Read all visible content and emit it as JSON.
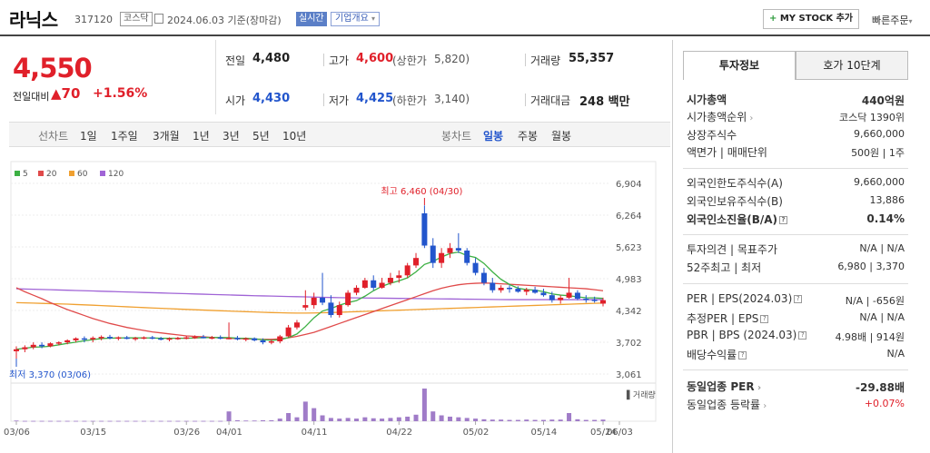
{
  "header": {
    "name": "라닉스",
    "code": "317120",
    "market": "코스닥",
    "date": "2024.06.03 기준(장마감)",
    "realtime": "실시간",
    "corp_info": "기업개요",
    "mystock": "MY STOCK 추가",
    "quick_order": "빠른주문"
  },
  "price": {
    "current": "4,550",
    "change_label": "전일대비",
    "change": "70",
    "change_pct": "+1.56%"
  },
  "quote": {
    "prev_label": "전일",
    "prev": "4,480",
    "high_label": "고가",
    "high": "4,600",
    "upper_label": "(상한가",
    "upper": "5,820)",
    "vol_label": "거래량",
    "vol": "55,357",
    "open_label": "시가",
    "open": "4,430",
    "low_label": "저가",
    "low": "4,425",
    "lower_label": "(하한가",
    "lower": "3,140)",
    "amt_label": "거래대금",
    "amt": "248 백만"
  },
  "periods": {
    "line_label": "선차트",
    "line_items": [
      "1일",
      "1주일",
      "3개월",
      "1년",
      "3년",
      "5년",
      "10년"
    ],
    "candle_label": "봉차트",
    "candle_items": [
      "일봉",
      "주봉",
      "월봉"
    ]
  },
  "colors": {
    "up": "#e0202a",
    "down": "#2255cc",
    "ma5": "#3cb043",
    "ma20": "#e04a4a",
    "ma60": "#f0a030",
    "ma120": "#a064d6",
    "volume": "#a07cc8"
  },
  "chart_data": {
    "type": "candlestick",
    "legend": [
      "5",
      "20",
      "60",
      "120"
    ],
    "y_ticks": [
      "6,904",
      "6,264",
      "5,623",
      "4,983",
      "4,342",
      "3,702",
      "3,061"
    ],
    "ylim": [
      3061,
      6904
    ],
    "x_ticks": [
      "03/06",
      "03/15",
      "03/26",
      "04/01",
      "04/11",
      "04/22",
      "05/02",
      "05/14",
      "05/24",
      "06/03"
    ],
    "max_label": "최고 6,460 (04/30)",
    "min_label": "최저 3,370 (03/06)",
    "volume_label": "거래량",
    "candles": [
      [
        3520,
        3620,
        3370,
        3560
      ],
      [
        3560,
        3640,
        3500,
        3600
      ],
      [
        3600,
        3700,
        3560,
        3650
      ],
      [
        3650,
        3700,
        3580,
        3620
      ],
      [
        3620,
        3700,
        3600,
        3680
      ],
      [
        3680,
        3720,
        3640,
        3700
      ],
      [
        3700,
        3760,
        3660,
        3740
      ],
      [
        3740,
        3800,
        3700,
        3780
      ],
      [
        3780,
        3820,
        3700,
        3760
      ],
      [
        3760,
        3820,
        3700,
        3790
      ],
      [
        3790,
        3840,
        3740,
        3810
      ],
      [
        3810,
        3850,
        3760,
        3780
      ],
      [
        3780,
        3820,
        3740,
        3800
      ],
      [
        3800,
        3830,
        3760,
        3770
      ],
      [
        3770,
        3810,
        3730,
        3790
      ],
      [
        3790,
        3820,
        3760,
        3800
      ],
      [
        3800,
        3830,
        3760,
        3780
      ],
      [
        3780,
        3810,
        3740,
        3760
      ],
      [
        3760,
        3800,
        3720,
        3780
      ],
      [
        3780,
        3810,
        3750,
        3790
      ],
      [
        3790,
        3830,
        3760,
        3800
      ],
      [
        3800,
        3840,
        3770,
        3810
      ],
      [
        3810,
        3850,
        3780,
        3790
      ],
      [
        3790,
        3830,
        3760,
        3800
      ],
      [
        3800,
        3840,
        3760,
        3780
      ],
      [
        3780,
        4100,
        3760,
        3790
      ],
      [
        3790,
        3830,
        3740,
        3760
      ],
      [
        3760,
        3800,
        3720,
        3780
      ],
      [
        3780,
        3800,
        3720,
        3740
      ],
      [
        3740,
        3780,
        3660,
        3700
      ],
      [
        3700,
        3760,
        3660,
        3720
      ],
      [
        3720,
        3850,
        3680,
        3820
      ],
      [
        3820,
        4050,
        3800,
        4000
      ],
      [
        4000,
        4150,
        3960,
        4100
      ],
      [
        4400,
        4750,
        4350,
        4450
      ],
      [
        4450,
        4700,
        4380,
        4600
      ],
      [
        4600,
        5100,
        4450,
        4500
      ],
      [
        4500,
        4650,
        4200,
        4250
      ],
      [
        4250,
        4520,
        4200,
        4450
      ],
      [
        4450,
        4750,
        4420,
        4700
      ],
      [
        4700,
        4850,
        4650,
        4800
      ],
      [
        4800,
        5000,
        4780,
        4950
      ],
      [
        4950,
        5050,
        4750,
        4800
      ],
      [
        4800,
        5000,
        4780,
        4900
      ],
      [
        4900,
        5100,
        4850,
        5000
      ],
      [
        5000,
        5150,
        4900,
        5050
      ],
      [
        5050,
        5300,
        5000,
        5250
      ],
      [
        5250,
        5500,
        5200,
        5400
      ],
      [
        6300,
        6460,
        5600,
        5650
      ],
      [
        5650,
        5800,
        5200,
        5300
      ],
      [
        5300,
        5600,
        5200,
        5500
      ],
      [
        5500,
        5700,
        5400,
        5600
      ],
      [
        5600,
        5900,
        5500,
        5550
      ],
      [
        5550,
        5600,
        5250,
        5300
      ],
      [
        5300,
        5400,
        5050,
        5100
      ],
      [
        5100,
        5200,
        4850,
        4900
      ],
      [
        4900,
        5000,
        4700,
        4750
      ],
      [
        4750,
        4850,
        4700,
        4800
      ],
      [
        4800,
        4850,
        4700,
        4780
      ],
      [
        4780,
        4830,
        4700,
        4720
      ],
      [
        4720,
        4800,
        4650,
        4760
      ],
      [
        4760,
        4820,
        4680,
        4700
      ],
      [
        4700,
        4780,
        4620,
        4650
      ],
      [
        4650,
        4720,
        4500,
        4550
      ],
      [
        4550,
        4650,
        4480,
        4600
      ],
      [
        4600,
        5000,
        4580,
        4700
      ],
      [
        4700,
        4750,
        4550,
        4580
      ],
      [
        4580,
        4650,
        4500,
        4560
      ],
      [
        4560,
        4620,
        4500,
        4540
      ],
      [
        4480,
        4600,
        4425,
        4550
      ]
    ],
    "ma20": [
      4800,
      4720,
      4650,
      4580,
      4500,
      4430,
      4360,
      4300,
      4240,
      4180,
      4130,
      4080,
      4040,
      4000,
      3970,
      3940,
      3910,
      3890,
      3870,
      3850,
      3830,
      3820,
      3810,
      3800,
      3790,
      3780,
      3775,
      3770,
      3765,
      3760,
      3760,
      3770,
      3790,
      3820,
      3860,
      3900,
      3960,
      4020,
      4080,
      4140,
      4200,
      4260,
      4320,
      4380,
      4440,
      4500,
      4560,
      4620,
      4680,
      4740,
      4790,
      4830,
      4860,
      4880,
      4890,
      4895,
      4890,
      4880,
      4870,
      4860,
      4850,
      4840,
      4830,
      4820,
      4810,
      4800,
      4790,
      4780,
      4760,
      4740
    ],
    "ma60": [
      4500,
      4495,
      4490,
      4485,
      4480,
      4475,
      4470,
      4462,
      4455,
      4448,
      4440,
      4432,
      4424,
      4416,
      4408,
      4400,
      4392,
      4385,
      4378,
      4371,
      4364,
      4357,
      4350,
      4343,
      4336,
      4330,
      4324,
      4318,
      4312,
      4306,
      4300,
      4296,
      4292,
      4290,
      4290,
      4292,
      4296,
      4300,
      4306,
      4312,
      4318,
      4324,
      4330,
      4336,
      4342,
      4348,
      4354,
      4360,
      4366,
      4372,
      4378,
      4384,
      4390,
      4396,
      4402,
      4408,
      4414,
      4420,
      4426,
      4432,
      4438,
      4444,
      4450,
      4456,
      4462,
      4468,
      4474,
      4480,
      4486,
      4492
    ],
    "ma120": [
      4780,
      4775,
      4770,
      4765,
      4760,
      4755,
      4750,
      4745,
      4740,
      4735,
      4730,
      4725,
      4720,
      4715,
      4710,
      4705,
      4700,
      4695,
      4690,
      4685,
      4680,
      4675,
      4670,
      4665,
      4660,
      4655,
      4650,
      4645,
      4640,
      4636,
      4632,
      4628,
      4624,
      4620,
      4616,
      4612,
      4608,
      4604,
      4600,
      4598,
      4596,
      4594,
      4592,
      4590,
      4588,
      4586,
      4584,
      4582,
      4580,
      4578,
      4576,
      4574,
      4572,
      4570,
      4568,
      4566,
      4564,
      4562,
      4560,
      4560,
      4560,
      4560,
      4560,
      4560,
      4560,
      4560,
      4560,
      4560,
      4560,
      4560
    ],
    "volume": [
      2,
      1,
      1,
      1,
      1,
      1,
      1,
      1,
      1,
      1,
      1,
      1,
      1,
      1,
      1,
      1,
      1,
      1,
      1,
      1,
      1,
      1,
      1,
      1,
      1,
      30,
      3,
      2,
      2,
      3,
      3,
      8,
      25,
      12,
      60,
      40,
      18,
      10,
      8,
      10,
      8,
      12,
      9,
      8,
      10,
      12,
      14,
      20,
      100,
      30,
      18,
      14,
      12,
      10,
      8,
      6,
      5,
      5,
      4,
      4,
      5,
      4,
      4,
      5,
      5,
      25,
      6,
      4,
      4,
      5
    ]
  },
  "invest_tabs": [
    "투자정보",
    "호가 10단계"
  ],
  "info": [
    {
      "label": "시가총액",
      "value": "440억원",
      "bold": true
    },
    {
      "label": "시가총액순위",
      "value": "코스닥 1390위",
      "arrow": true
    },
    {
      "label": "상장주식수",
      "value": "9,660,000"
    },
    {
      "label": "액면가 | 매매단위",
      "value": "500원 | 1주"
    },
    {
      "label": "외국인한도주식수(A)",
      "value": "9,660,000"
    },
    {
      "label": "외국인보유주식수(B)",
      "value": "13,886"
    },
    {
      "label": "외국인소진율(B/A)",
      "value": "0.14%",
      "bold": true,
      "q": true
    },
    {
      "label": "투자의견 | 목표주가",
      "value": "N/A | N/A"
    },
    {
      "label": "52주최고 | 최저",
      "value": "6,980 | 3,370"
    },
    {
      "label": "PER | EPS(2024.03)",
      "value": "N/A | -656원",
      "q": true
    },
    {
      "label": "추정PER | EPS",
      "value": "N/A | N/A",
      "q": true
    },
    {
      "label": "PBR | BPS (2024.03)",
      "value": "4.98배 | 914원",
      "q": true
    },
    {
      "label": "배당수익률",
      "value": "N/A",
      "q": true
    },
    {
      "label": "동일업종 PER",
      "value": "-29.88배",
      "bold": true,
      "arrow": true
    },
    {
      "label": "동일업종 등락률",
      "value": "+0.07%",
      "arrow": true,
      "red": true
    }
  ]
}
